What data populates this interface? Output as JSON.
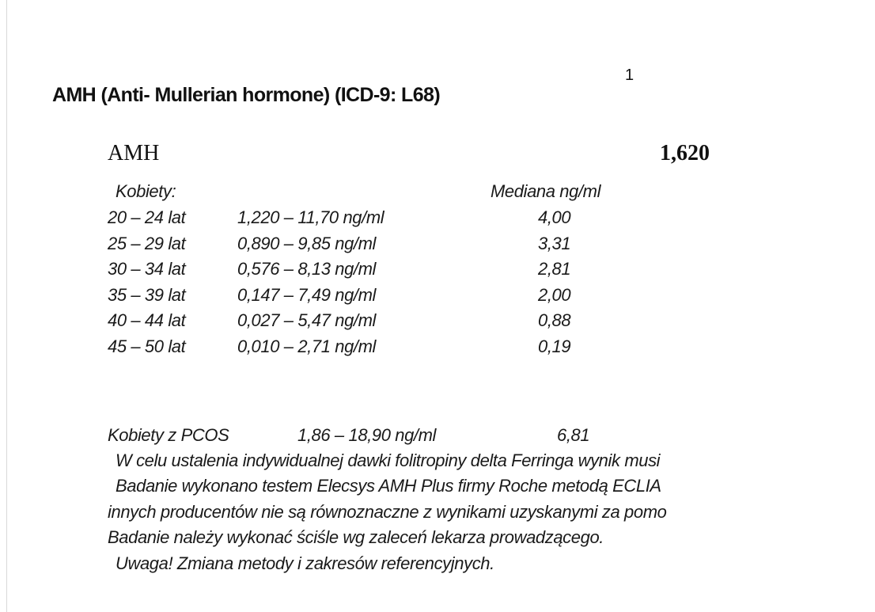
{
  "title": "AMH (Anti- Mullerian hormone) (ICD-9: L68)",
  "footnote_mark": "1",
  "test_name": "AMH",
  "result": "1,620",
  "group_label": "Kobiety:",
  "median_header": "Mediana ng/ml",
  "rows": [
    {
      "age": "20 – 24 lat",
      "range": "1,220 – 11,70 ng/ml",
      "median": "4,00"
    },
    {
      "age": "25 – 29 lat",
      "range": "0,890 – 9,85 ng/ml",
      "median": "3,31"
    },
    {
      "age": "30 – 34 lat",
      "range": "0,576 – 8,13 ng/ml",
      "median": "2,81"
    },
    {
      "age": "35 – 39 lat",
      "range": "0,147 – 7,49 ng/ml",
      "median": "2,00"
    },
    {
      "age": "40 – 44 lat",
      "range": "0,027 – 5,47 ng/ml",
      "median": "0,88"
    },
    {
      "age": "45 – 50 lat",
      "range": "0,010 – 2,71 ng/ml",
      "median": "0,19"
    }
  ],
  "pcos": {
    "label": "Kobiety z PCOS",
    "range": "1,86 – 18,90 ng/ml",
    "median": "6,81"
  },
  "notes": [
    "W celu ustalenia indywidualnej dawki folitropiny delta Ferringa wynik musi",
    "Badanie wykonano testem Elecsys AMH Plus firmy Roche metodą ECLIA",
    "innych producentów nie są równoznaczne z wynikami uzyskanymi za pomo",
    "Badanie należy wykonać ściśle wg zaleceń lekarza prowadzącego.",
    "Uwaga! Zmiana metody i zakresów referencyjnych."
  ]
}
